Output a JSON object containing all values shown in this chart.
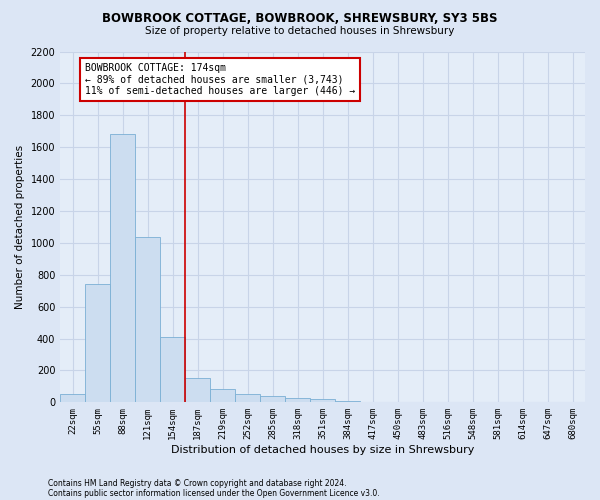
{
  "title": "BOWBROOK COTTAGE, BOWBROOK, SHREWSBURY, SY3 5BS",
  "subtitle": "Size of property relative to detached houses in Shrewsbury",
  "xlabel": "Distribution of detached houses by size in Shrewsbury",
  "ylabel": "Number of detached properties",
  "footer1": "Contains HM Land Registry data © Crown copyright and database right 2024.",
  "footer2": "Contains public sector information licensed under the Open Government Licence v3.0.",
  "bar_labels": [
    "22sqm",
    "55sqm",
    "88sqm",
    "121sqm",
    "154sqm",
    "187sqm",
    "219sqm",
    "252sqm",
    "285sqm",
    "318sqm",
    "351sqm",
    "384sqm",
    "417sqm",
    "450sqm",
    "483sqm",
    "516sqm",
    "548sqm",
    "581sqm",
    "614sqm",
    "647sqm",
    "680sqm"
  ],
  "bar_values": [
    55,
    745,
    1680,
    1035,
    410,
    150,
    85,
    50,
    40,
    28,
    18,
    10,
    0,
    0,
    0,
    0,
    0,
    0,
    0,
    0,
    0
  ],
  "bar_color": "#ccddf0",
  "bar_edgecolor": "#7aafd4",
  "vline_color": "#cc0000",
  "annotation_title": "BOWBROOK COTTAGE: 174sqm",
  "annotation_line1": "← 89% of detached houses are smaller (3,743)",
  "annotation_line2": "11% of semi-detached houses are larger (446) →",
  "annotation_box_color": "#ffffff",
  "annotation_box_edgecolor": "#cc0000",
  "ylim": [
    0,
    2200
  ],
  "yticks": [
    0,
    200,
    400,
    600,
    800,
    1000,
    1200,
    1400,
    1600,
    1800,
    2000,
    2200
  ],
  "grid_color": "#c8d4e8",
  "background_color": "#dce6f5",
  "plot_background_color": "#e4edf8"
}
